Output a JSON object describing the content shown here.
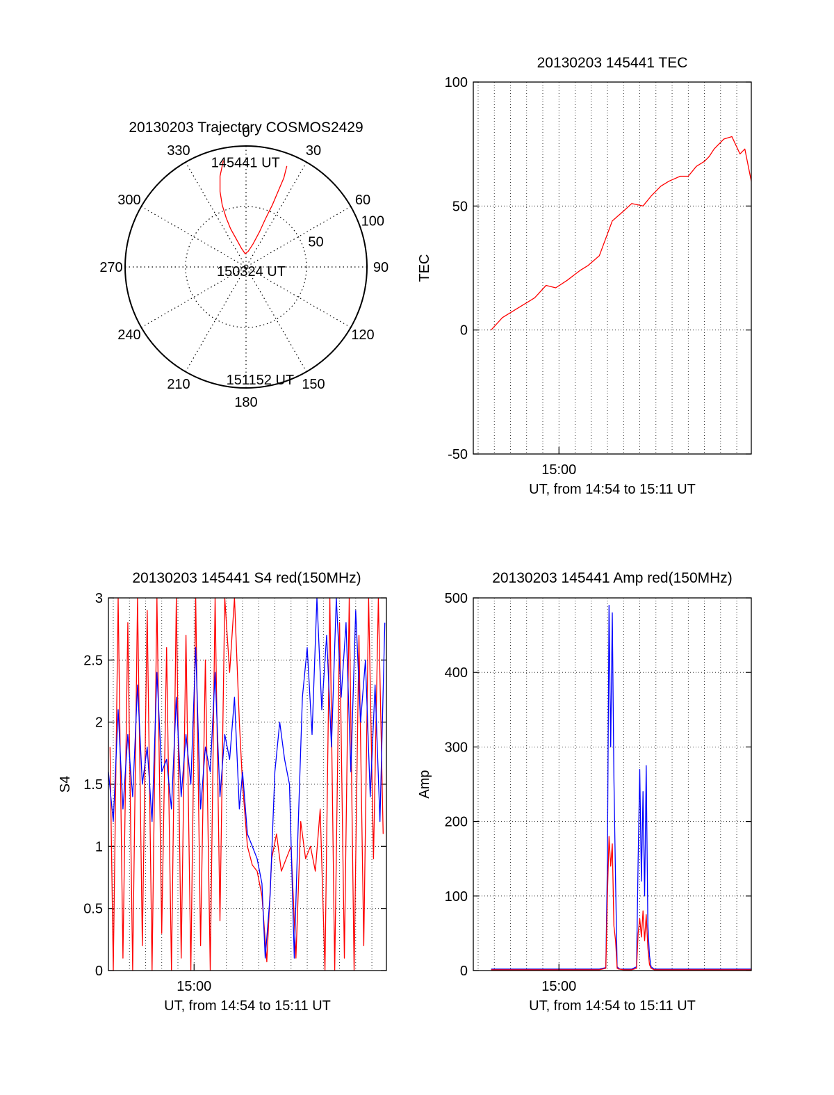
{
  "colors": {
    "red": "#ff0000",
    "blue": "#0000ff",
    "axis": "#000000"
  },
  "x_axis_common": {
    "tick_label": "15:00",
    "xlabel": "UT, from 14:54 to 15:11 UT",
    "range_min": [
      54.7,
      71.9
    ],
    "minor_grid_step_min": 1
  },
  "chart_data": [
    {
      "id": "trajectory",
      "type": "polar",
      "title": "20130203 Trajectory COSMOS2429",
      "angle_labels": [
        "0",
        "30",
        "60",
        "90",
        "120",
        "150",
        "180",
        "210",
        "240",
        "270",
        "300",
        "330"
      ],
      "radial_labels": [
        "50",
        "100"
      ],
      "radial_max": 100,
      "series": [
        {
          "color": "red",
          "points": [
            [
              348,
              90
            ],
            [
              344,
              78
            ],
            [
              341,
              66
            ],
            [
              339,
              55
            ],
            [
              338,
              44
            ],
            [
              338,
              34
            ],
            [
              341,
              24
            ],
            [
              346,
              16
            ],
            [
              356,
              11
            ],
            [
              8,
              13
            ],
            [
              17,
              20
            ],
            [
              21,
              31
            ],
            [
              22,
              43
            ],
            [
              23,
              56
            ],
            [
              23,
              69
            ],
            [
              23,
              80
            ],
            [
              22,
              90
            ]
          ]
        }
      ],
      "annotations": [
        {
          "text": "145441 UT",
          "az": 357,
          "r": 90
        },
        {
          "text": "150324 UT",
          "az": 0,
          "r": 0
        },
        {
          "text": "151152 UT",
          "az": 175,
          "r": 90
        }
      ]
    },
    {
      "id": "tec",
      "type": "line",
      "title": "20130203 145441 TEC",
      "ylabel": "TEC",
      "ylim": [
        -50,
        100
      ],
      "yticks": [
        "-50",
        "0",
        "50",
        "100"
      ],
      "series": [
        {
          "color": "red",
          "x": [
            55.8,
            56.5,
            57.5,
            58.5,
            59.2,
            59.8,
            60.5,
            61.3,
            61.8,
            62.5,
            63.3,
            64.0,
            64.5,
            65.2,
            65.7,
            66.3,
            66.8,
            67.5,
            68.0,
            68.5,
            69.0,
            69.3,
            69.6,
            70.2,
            70.7,
            71.2,
            71.5,
            71.9
          ],
          "y": [
            0,
            5,
            9,
            13,
            18,
            17,
            20,
            24,
            26,
            30,
            44,
            48,
            51,
            50,
            54,
            58,
            60,
            62,
            62,
            66,
            68,
            70,
            73,
            77,
            78,
            71,
            73,
            60
          ]
        }
      ]
    },
    {
      "id": "s4",
      "type": "line",
      "title": "20130203 145441 S4 red(150MHz)",
      "ylabel": "S4",
      "ylim": [
        0,
        3
      ],
      "yticks": [
        "0",
        "0.5",
        "1",
        "1.5",
        "2",
        "2.5",
        "3"
      ],
      "series": [
        {
          "name": "",
          "color": "red",
          "x": [
            54.8,
            55.0,
            55.3,
            55.6,
            55.9,
            56.2,
            56.5,
            56.8,
            57.1,
            57.4,
            57.7,
            58.0,
            58.3,
            58.6,
            58.9,
            59.2,
            59.5,
            59.8,
            60.1,
            60.4,
            60.7,
            61.0,
            61.3,
            61.6,
            61.9,
            62.2,
            62.5,
            62.8,
            63.0,
            63.3,
            63.6,
            63.9,
            64.2,
            64.5,
            64.8,
            65.1,
            65.4,
            65.7,
            66.0,
            66.3,
            66.6,
            66.9,
            67.2,
            67.5,
            67.8,
            68.1,
            68.4,
            68.7,
            69.0,
            69.3,
            69.6,
            69.9,
            70.2,
            70.5,
            70.8,
            71.1,
            71.4,
            71.7
          ],
          "y": [
            1.8,
            0.0,
            3.0,
            0.1,
            2.8,
            0.0,
            3.0,
            0.2,
            2.9,
            0.0,
            3.0,
            0.3,
            2.6,
            0.0,
            3.0,
            0.1,
            2.7,
            0.0,
            3.0,
            0.2,
            2.5,
            0.0,
            3.0,
            0.4,
            3.0,
            2.4,
            3.0,
            2.0,
            1.5,
            1.0,
            0.85,
            0.8,
            0.6,
            0.07,
            0.9,
            1.1,
            0.8,
            0.9,
            1.0,
            0.1,
            1.2,
            0.9,
            1.0,
            0.8,
            1.3,
            0.0,
            3.0,
            0.0,
            2.8,
            0.1,
            3.0,
            0.0,
            2.7,
            0.2,
            3.0,
            0.9,
            3.0,
            1.1
          ]
        },
        {
          "name": "",
          "color": "blue",
          "x": [
            54.7,
            55.0,
            55.3,
            55.6,
            55.9,
            56.2,
            56.5,
            56.8,
            57.1,
            57.4,
            57.7,
            58.0,
            58.3,
            58.6,
            58.9,
            59.2,
            59.5,
            59.8,
            60.1,
            60.4,
            60.7,
            61.0,
            61.3,
            61.6,
            61.9,
            62.2,
            62.5,
            62.8,
            63.0,
            63.3,
            63.6,
            63.9,
            64.2,
            64.4,
            64.7,
            65.0,
            65.3,
            65.6,
            65.9,
            66.2,
            66.4,
            66.7,
            67.0,
            67.3,
            67.6,
            67.9,
            68.2,
            68.5,
            68.8,
            69.1,
            69.4,
            69.7,
            70.0,
            70.3,
            70.6,
            70.9,
            71.2,
            71.5,
            71.8
          ],
          "y": [
            1.6,
            1.2,
            2.1,
            1.3,
            1.9,
            1.4,
            2.3,
            1.5,
            1.8,
            1.2,
            2.4,
            1.6,
            1.7,
            1.3,
            2.2,
            1.4,
            1.9,
            1.5,
            2.6,
            1.3,
            1.8,
            1.6,
            2.4,
            1.4,
            1.9,
            1.7,
            2.2,
            1.3,
            1.6,
            1.1,
            1.0,
            0.9,
            0.7,
            0.1,
            0.6,
            1.6,
            2.0,
            1.7,
            1.5,
            0.1,
            1.0,
            2.2,
            2.6,
            1.9,
            3.0,
            2.1,
            2.7,
            1.8,
            3.0,
            2.2,
            2.8,
            1.6,
            2.9,
            2.0,
            2.5,
            1.4,
            2.3,
            1.2,
            2.8
          ]
        }
      ]
    },
    {
      "id": "amp",
      "type": "line",
      "title": "20130203 145441 Amp red(150MHz)",
      "ylabel": "Amp",
      "ylim": [
        0,
        500
      ],
      "yticks": [
        "0",
        "100",
        "200",
        "300",
        "400",
        "500"
      ],
      "series": [
        {
          "name": "",
          "color": "blue",
          "x": [
            55.8,
            58.0,
            60.0,
            62.5,
            62.9,
            63.0,
            63.1,
            63.2,
            63.3,
            63.4,
            63.5,
            63.6,
            63.7,
            63.8,
            64.0,
            64.5,
            64.8,
            64.9,
            65.0,
            65.1,
            65.2,
            65.3,
            65.4,
            65.5,
            65.6,
            65.7,
            65.9,
            67.0,
            69.0,
            71.9
          ],
          "y": [
            2,
            2,
            2,
            2,
            4,
            150,
            490,
            300,
            480,
            260,
            120,
            5,
            3,
            2,
            2,
            2,
            5,
            150,
            270,
            120,
            240,
            100,
            275,
            60,
            20,
            5,
            2,
            2,
            2,
            2
          ]
        },
        {
          "name": "",
          "color": "red",
          "x": [
            55.8,
            60.0,
            62.5,
            62.9,
            63.0,
            63.1,
            63.2,
            63.3,
            63.4,
            63.5,
            63.6,
            63.7,
            64.0,
            64.5,
            64.8,
            64.9,
            65.0,
            65.1,
            65.2,
            65.3,
            65.4,
            65.5,
            65.6,
            65.7,
            65.9,
            71.9
          ],
          "y": [
            1,
            1,
            1,
            3,
            100,
            180,
            140,
            170,
            60,
            40,
            3,
            2,
            1,
            1,
            3,
            50,
            70,
            45,
            80,
            40,
            75,
            30,
            8,
            3,
            1,
            1
          ]
        }
      ]
    }
  ]
}
